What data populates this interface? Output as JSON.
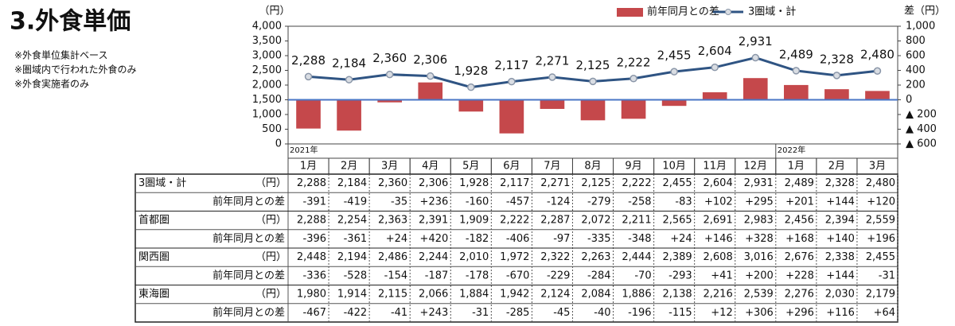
{
  "title": "3.外食単価",
  "notes": [
    "※外食単位集計ベース",
    "※圏域内で行われた外食のみ",
    "※外食実施者のみ"
  ],
  "chart_data": {
    "type": "combo",
    "y_label": "（円）",
    "y2_label": "差（円）",
    "categories": [
      "1月",
      "2月",
      "3月",
      "4月",
      "5月",
      "6月",
      "7月",
      "8月",
      "9月",
      "10月",
      "11月",
      "12月",
      "1月",
      "2月",
      "3月"
    ],
    "years": [
      "2021年",
      null,
      null,
      null,
      null,
      null,
      null,
      null,
      null,
      null,
      null,
      null,
      "2022年",
      null,
      null
    ],
    "series": [
      {
        "name": "3圏域・計",
        "kind": "line",
        "axis": "y",
        "color": "#2f5483",
        "values": [
          2288,
          2184,
          2360,
          2306,
          1928,
          2117,
          2271,
          2125,
          2222,
          2455,
          2604,
          2931,
          2489,
          2328,
          2480
        ],
        "value_labels": [
          "2,288",
          "2,184",
          "2,360",
          "2,306",
          "1,928",
          "2,117",
          "2,271",
          "2,125",
          "2,222",
          "2,455",
          "2,604",
          "2,931",
          "2,489",
          "2,328",
          "2,480"
        ]
      },
      {
        "name": "前年同月との差",
        "kind": "bar",
        "axis": "y2",
        "color": "#c5484b",
        "values": [
          -391,
          -419,
          -35,
          236,
          -160,
          -457,
          -124,
          -279,
          -258,
          -83,
          102,
          295,
          201,
          144,
          120
        ]
      }
    ],
    "ylim": [
      0,
      4000
    ],
    "yticks": [
      0,
      500,
      {
        "value": 1000,
        "label": "1,000"
      },
      {
        "value": 1500,
        "label": "1,500"
      },
      {
        "value": 2000,
        "label": "2,000"
      },
      {
        "value": 2500,
        "label": "2,500"
      },
      {
        "value": 3000,
        "label": "3,000"
      },
      {
        "value": 3500,
        "label": "3,500"
      },
      {
        "value": 4000,
        "label": "4,000"
      }
    ],
    "y2lim": [
      -600,
      1000
    ],
    "y2ticks": [
      {
        "value": -600,
        "label": "▲ 600"
      },
      {
        "value": -400,
        "label": "▲ 400"
      },
      {
        "value": -200,
        "label": "▲ 200"
      },
      0,
      200,
      400,
      600,
      800,
      {
        "value": 1000,
        "label": "1,000"
      }
    ],
    "zero_line_color": "#4a76c6",
    "grid": false,
    "legend": "top-right"
  },
  "table": {
    "rows": [
      {
        "region": "3圏域・計",
        "unit": "（円）",
        "values": [
          "2,288",
          "2,184",
          "2,360",
          "2,306",
          "1,928",
          "2,117",
          "2,271",
          "2,125",
          "2,222",
          "2,455",
          "2,604",
          "2,931",
          "2,489",
          "2,328",
          "2,480"
        ],
        "diff_label": "前年同月との差",
        "diffs": [
          "-391",
          "-419",
          "-35",
          "+236",
          "-160",
          "-457",
          "-124",
          "-279",
          "-258",
          "-83",
          "+102",
          "+295",
          "+201",
          "+144",
          "+120"
        ]
      },
      {
        "region": "首都圏",
        "unit": "（円）",
        "values": [
          "2,288",
          "2,254",
          "2,363",
          "2,391",
          "1,909",
          "2,222",
          "2,287",
          "2,072",
          "2,211",
          "2,565",
          "2,691",
          "2,983",
          "2,456",
          "2,394",
          "2,559"
        ],
        "diff_label": "前年同月との差",
        "diffs": [
          "-396",
          "-361",
          "+24",
          "+420",
          "-182",
          "-406",
          "-97",
          "-335",
          "-348",
          "+24",
          "+146",
          "+328",
          "+168",
          "+140",
          "+196"
        ]
      },
      {
        "region": "関西圏",
        "unit": "（円）",
        "values": [
          "2,448",
          "2,194",
          "2,486",
          "2,244",
          "2,010",
          "1,972",
          "2,322",
          "2,263",
          "2,444",
          "2,389",
          "2,608",
          "3,016",
          "2,676",
          "2,338",
          "2,455"
        ],
        "diff_label": "前年同月との差",
        "diffs": [
          "-336",
          "-528",
          "-154",
          "-187",
          "-178",
          "-670",
          "-229",
          "-284",
          "-70",
          "-293",
          "+41",
          "+200",
          "+228",
          "+144",
          "-31"
        ]
      },
      {
        "region": "東海圏",
        "unit": "（円）",
        "values": [
          "1,980",
          "1,914",
          "2,115",
          "2,066",
          "1,884",
          "1,942",
          "2,124",
          "2,084",
          "1,886",
          "2,138",
          "2,216",
          "2,539",
          "2,276",
          "2,030",
          "2,179"
        ],
        "diff_label": "前年同月との差",
        "diffs": [
          "-467",
          "-422",
          "-41",
          "+243",
          "-31",
          "-285",
          "-45",
          "-40",
          "-196",
          "-115",
          "+12",
          "+306",
          "+296",
          "+116",
          "+64"
        ]
      }
    ]
  }
}
